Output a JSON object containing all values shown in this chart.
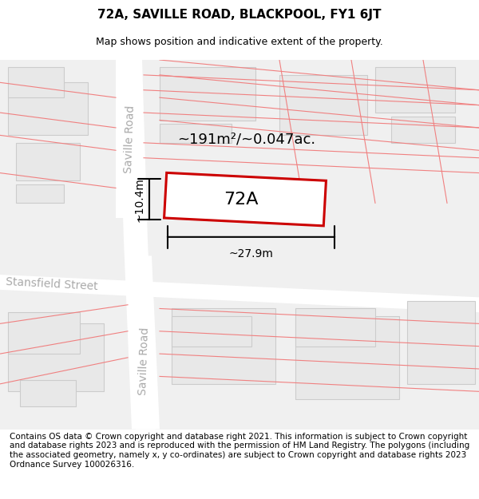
{
  "title": "72A, SAVILLE ROAD, BLACKPOOL, FY1 6JT",
  "subtitle": "Map shows position and indicative extent of the property.",
  "footer": "Contains OS data © Crown copyright and database right 2021. This information is subject to Crown copyright and database rights 2023 and is reproduced with the permission of HM Land Registry. The polygons (including the associated geometry, namely x, y co-ordinates) are subject to Crown copyright and database rights 2023 Ordnance Survey 100026316.",
  "area_label": "~191m²/~0.047ac.",
  "width_label": "~27.9m",
  "height_label": "~10.4m",
  "plot_label": "72A",
  "bg_color": "#f0f0f0",
  "map_bg": "#f5f5f5",
  "road_color": "#ffffff",
  "building_color": "#e0e0e0",
  "plot_fill": "#ffffff",
  "plot_border": "#cc0000",
  "road_line_color": "#f08080",
  "street_label1": "Saville Road",
  "street_label2": "Saville Road",
  "cross_street": "Stansfield Street",
  "title_fontsize": 11,
  "subtitle_fontsize": 9,
  "footer_fontsize": 7.5
}
